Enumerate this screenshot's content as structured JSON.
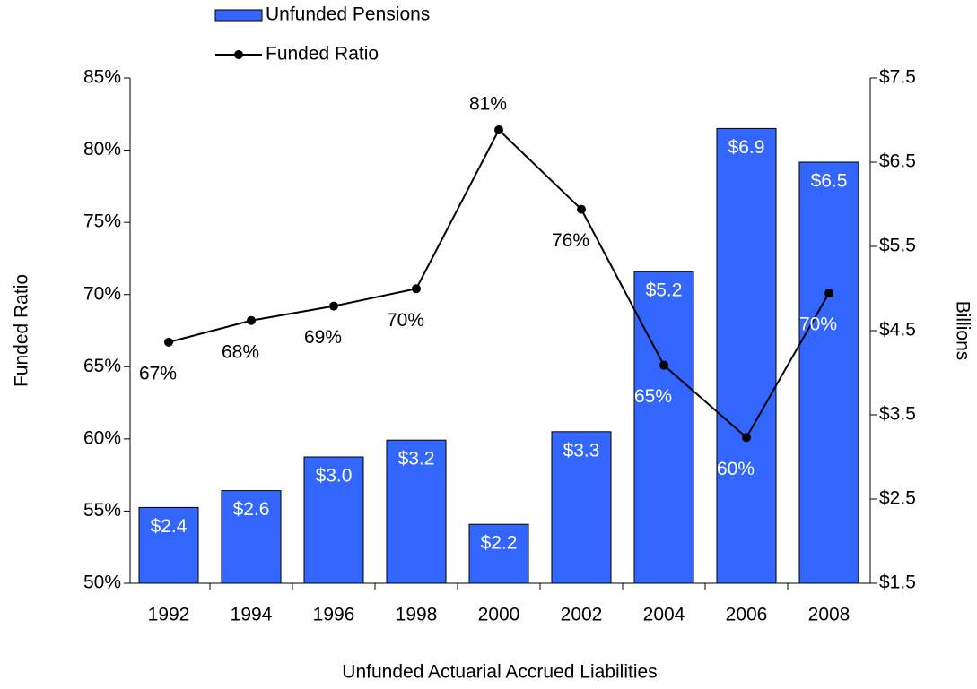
{
  "chart_data": {
    "type": "combo",
    "x_label": "Unfunded Actuarial Accrued Liabilities",
    "y_label": "Funded Ratio",
    "y2_label": "Billions",
    "categories": [
      "1992",
      "1994",
      "1996",
      "1998",
      "2000",
      "2002",
      "2004",
      "2006",
      "2008"
    ],
    "series": [
      {
        "name": "Unfunded Pensions",
        "type": "bar",
        "axis": "y2",
        "color": "#3366ff",
        "values": [
          2.4,
          2.6,
          3.0,
          3.2,
          2.2,
          3.3,
          5.2,
          6.9,
          6.5
        ],
        "value_labels": [
          "$2.4",
          "$2.6",
          "$3.0",
          "$3.2",
          "$2.2",
          "$3.3",
          "$5.2",
          "$6.9",
          "$6.5"
        ]
      },
      {
        "name": "Funded Ratio",
        "type": "line",
        "axis": "y",
        "color": "#000000",
        "values": [
          66.7,
          68.2,
          69.2,
          70.4,
          81.4,
          75.9,
          65.1,
          60.1,
          70.1
        ],
        "value_labels": [
          "67%",
          "68%",
          "69%",
          "70%",
          "81%",
          "76%",
          "65%",
          "60%",
          "70%"
        ]
      }
    ],
    "ylim": [
      50,
      85
    ],
    "yticks": [
      {
        "value": 50,
        "label": "50%"
      },
      {
        "value": 55,
        "label": "55%"
      },
      {
        "value": 60,
        "label": "60%"
      },
      {
        "value": 65,
        "label": "65%"
      },
      {
        "value": 70,
        "label": "70%"
      },
      {
        "value": 75,
        "label": "75%"
      },
      {
        "value": 80,
        "label": "80%"
      },
      {
        "value": 85,
        "label": "85%"
      }
    ],
    "y2lim": [
      1.5,
      7.5
    ],
    "y2ticks": [
      {
        "value": 1.5,
        "label": "$1.5"
      },
      {
        "value": 2.5,
        "label": "$2.5"
      },
      {
        "value": 3.5,
        "label": "$3.5"
      },
      {
        "value": 4.5,
        "label": "$4.5"
      },
      {
        "value": 5.5,
        "label": "$5.5"
      },
      {
        "value": 6.5,
        "label": "$6.5"
      },
      {
        "value": 7.5,
        "label": "$7.5"
      }
    ],
    "grid": false,
    "legend": "top"
  }
}
